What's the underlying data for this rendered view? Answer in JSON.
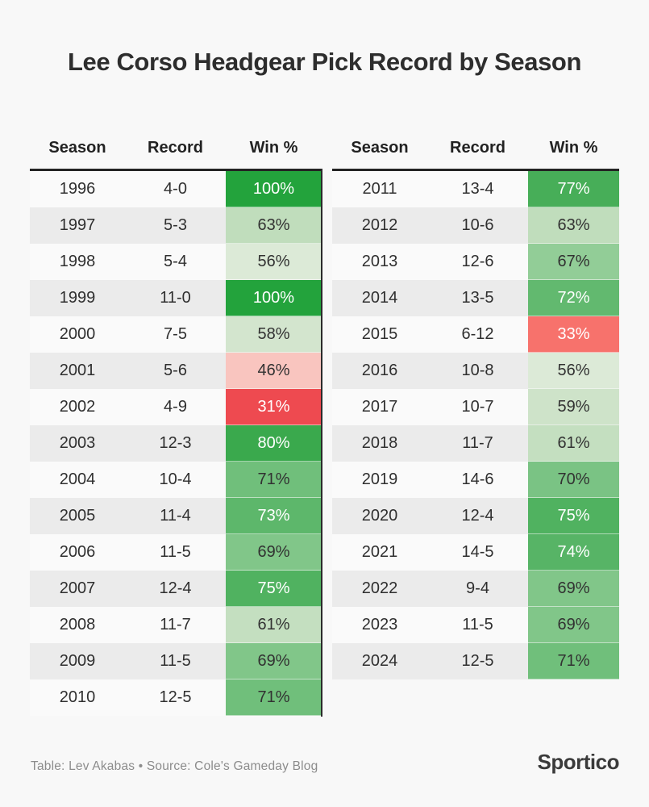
{
  "title": "Lee Corso Headgear Pick Record by Season",
  "footer": {
    "credit": "Table: Lev Akabas • Source: Cole's Gameday Blog",
    "logo": "Sportico"
  },
  "colors": {
    "page_background": "#f8f8f8",
    "row_light": "#fafafa",
    "row_dark": "#ebebeb",
    "header_rule": "#232323",
    "table_divider": "#2b2b2b",
    "strong_green": "#23a33c",
    "strong_red": "#ee4a50"
  },
  "chart_data": {
    "type": "table",
    "title": "Lee Corso Headgear Pick Record by Season",
    "columns": [
      "Season",
      "Record",
      "Win %"
    ],
    "tables": [
      {
        "rows": [
          {
            "season": "1996",
            "record": "4-0",
            "win_pct": "100%",
            "cell_bg": "#23a33c",
            "cell_text": "#ffffff"
          },
          {
            "season": "1997",
            "record": "5-3",
            "win_pct": "63%",
            "cell_bg": "#c0ddbc",
            "cell_text": "#323232"
          },
          {
            "season": "1998",
            "record": "5-4",
            "win_pct": "56%",
            "cell_bg": "#dcead7",
            "cell_text": "#323232"
          },
          {
            "season": "1999",
            "record": "11-0",
            "win_pct": "100%",
            "cell_bg": "#23a33c",
            "cell_text": "#ffffff"
          },
          {
            "season": "2000",
            "record": "7-5",
            "win_pct": "58%",
            "cell_bg": "#d3e5ce",
            "cell_text": "#323232"
          },
          {
            "season": "2001",
            "record": "5-6",
            "win_pct": "46%",
            "cell_bg": "#f9c5bf",
            "cell_text": "#323232"
          },
          {
            "season": "2002",
            "record": "4-9",
            "win_pct": "31%",
            "cell_bg": "#ee4a50",
            "cell_text": "#ffffff"
          },
          {
            "season": "2003",
            "record": "12-3",
            "win_pct": "80%",
            "cell_bg": "#3aa94d",
            "cell_text": "#ffffff"
          },
          {
            "season": "2004",
            "record": "10-4",
            "win_pct": "71%",
            "cell_bg": "#70bf7b",
            "cell_text": "#323232"
          },
          {
            "season": "2005",
            "record": "11-4",
            "win_pct": "73%",
            "cell_bg": "#5db76b",
            "cell_text": "#ffffff"
          },
          {
            "season": "2006",
            "record": "11-5",
            "win_pct": "69%",
            "cell_bg": "#81c689",
            "cell_text": "#323232"
          },
          {
            "season": "2007",
            "record": "12-4",
            "win_pct": "75%",
            "cell_bg": "#50b260",
            "cell_text": "#ffffff"
          },
          {
            "season": "2008",
            "record": "11-7",
            "win_pct": "61%",
            "cell_bg": "#c4dfc0",
            "cell_text": "#323232"
          },
          {
            "season": "2009",
            "record": "11-5",
            "win_pct": "69%",
            "cell_bg": "#81c689",
            "cell_text": "#323232"
          },
          {
            "season": "2010",
            "record": "12-5",
            "win_pct": "71%",
            "cell_bg": "#70bf7b",
            "cell_text": "#323232"
          }
        ]
      },
      {
        "rows": [
          {
            "season": "2011",
            "record": "13-4",
            "win_pct": "77%",
            "cell_bg": "#47ae58",
            "cell_text": "#ffffff"
          },
          {
            "season": "2012",
            "record": "10-6",
            "win_pct": "63%",
            "cell_bg": "#c0ddbc",
            "cell_text": "#323232"
          },
          {
            "season": "2013",
            "record": "12-6",
            "win_pct": "67%",
            "cell_bg": "#92cd97",
            "cell_text": "#323232"
          },
          {
            "season": "2014",
            "record": "13-5",
            "win_pct": "72%",
            "cell_bg": "#62b96f",
            "cell_text": "#ffffff"
          },
          {
            "season": "2015",
            "record": "6-12",
            "win_pct": "33%",
            "cell_bg": "#f7726c",
            "cell_text": "#ffffff"
          },
          {
            "season": "2016",
            "record": "10-8",
            "win_pct": "56%",
            "cell_bg": "#dcead7",
            "cell_text": "#323232"
          },
          {
            "season": "2017",
            "record": "10-7",
            "win_pct": "59%",
            "cell_bg": "#cee3c9",
            "cell_text": "#323232"
          },
          {
            "season": "2018",
            "record": "11-7",
            "win_pct": "61%",
            "cell_bg": "#c4dfc0",
            "cell_text": "#323232"
          },
          {
            "season": "2019",
            "record": "14-6",
            "win_pct": "70%",
            "cell_bg": "#7ac384",
            "cell_text": "#323232"
          },
          {
            "season": "2020",
            "record": "12-4",
            "win_pct": "75%",
            "cell_bg": "#50b260",
            "cell_text": "#ffffff"
          },
          {
            "season": "2021",
            "record": "14-5",
            "win_pct": "74%",
            "cell_bg": "#57b466",
            "cell_text": "#ffffff"
          },
          {
            "season": "2022",
            "record": "9-4",
            "win_pct": "69%",
            "cell_bg": "#81c689",
            "cell_text": "#323232"
          },
          {
            "season": "2023",
            "record": "11-5",
            "win_pct": "69%",
            "cell_bg": "#81c689",
            "cell_text": "#323232"
          },
          {
            "season": "2024",
            "record": "12-5",
            "win_pct": "71%",
            "cell_bg": "#70bf7b",
            "cell_text": "#323232"
          }
        ]
      }
    ]
  }
}
